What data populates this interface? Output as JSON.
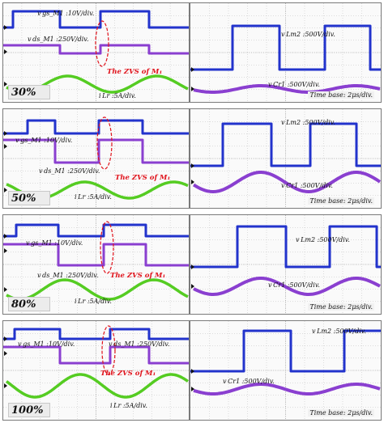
{
  "chart_data": [
    {
      "type": "line",
      "load": "30%",
      "left": {
        "labels": {
          "vgs": "v gs_M1 :10V/div.",
          "vds": "v ds_M1 :250V/div.",
          "zvs": "The ZVS of M₁",
          "iLr": "i Lr :5A/div."
        }
      },
      "right": {
        "labels": {
          "vLm2": "v Lm2 :500V/div.",
          "vCr1": "v Cr1 :500V/div."
        },
        "time_base": "Time base: 2μs/div."
      }
    },
    {
      "type": "line",
      "load": "50%",
      "left": {
        "labels": {
          "vgs": "v gs_M1 :10V/div.",
          "vds": "v ds_M1 :250V/div.",
          "zvs": "The ZVS of M₁",
          "iLr": "i Lr :5A/div."
        }
      },
      "right": {
        "labels": {
          "vLm2": "v Lm2 :500V/div.",
          "vCr1": "v Cr1 :500V/div."
        },
        "time_base": "Time base: 2μs/div."
      }
    },
    {
      "type": "line",
      "load": "80%",
      "left": {
        "labels": {
          "vgs": "v gs_M1 :10V/div.",
          "vds": "v ds_M1 :250V/div.",
          "zvs": "The ZVS of M₁",
          "iLr": "i Lr :5A/div."
        }
      },
      "right": {
        "labels": {
          "vLm2": "v Lm2 :500V/div.",
          "vCr1": "v Cr1 :500V/div."
        },
        "time_base": "Time base: 2μs/div."
      }
    },
    {
      "type": "line",
      "load": "100%",
      "left": {
        "labels": {
          "vgs": "v gs_M1 :10V/div.",
          "vds": "v ds_M1 :250V/div.",
          "zvs": "The ZVS of M₁",
          "iLr": "i Lr :5A/div."
        }
      },
      "right": {
        "labels": {
          "vLm2": "v Lm2 :500V/div.",
          "vCr1": "v Cr1 :500V/div."
        },
        "time_base": "Time base: 2μs/div."
      }
    }
  ],
  "colors": {
    "vgs": "#2233cc",
    "vds": "#8a3fd0",
    "iLr": "#55cc22",
    "vLm2": "#2233cc",
    "vCr1": "#8a3fd0",
    "zvs_marker": "#e0121b",
    "grid": "#bdbdbd"
  }
}
